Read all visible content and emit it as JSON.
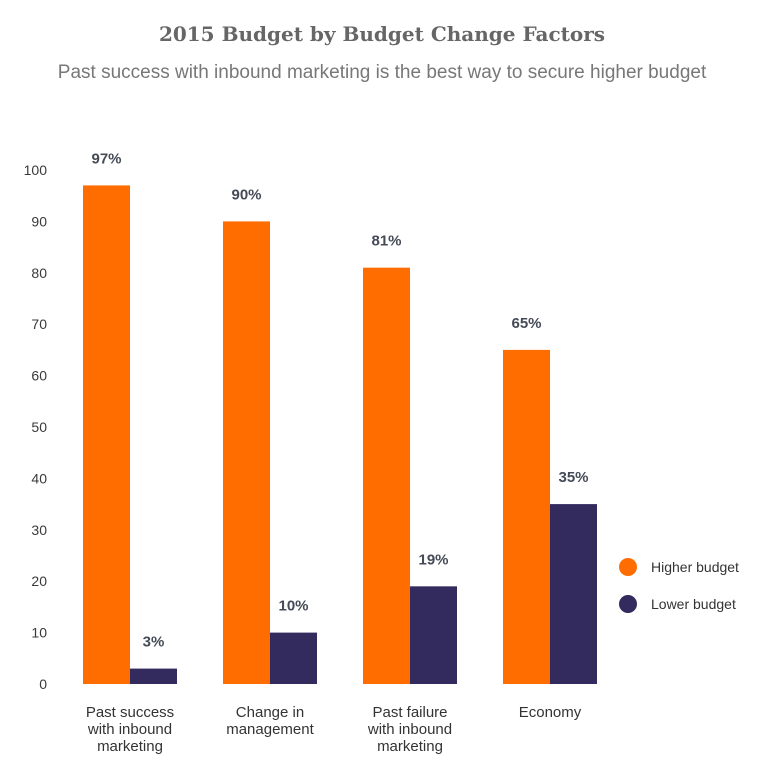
{
  "chart_data": {
    "type": "bar",
    "title": "2015 Budget by Budget Change Factors",
    "subtitle": "Past success with inbound marketing is the best way to secure higher budget",
    "categories": [
      [
        "Past success",
        "with inbound",
        "marketing"
      ],
      [
        "Change in",
        "management"
      ],
      [
        "Past failure",
        "with inbound",
        "marketing"
      ],
      [
        "Economy"
      ]
    ],
    "series": [
      {
        "name": "Higher budget",
        "color": "#ff6d00",
        "values": [
          97,
          90,
          81,
          65
        ],
        "labels": [
          "97%",
          "90%",
          "81%",
          "65%"
        ]
      },
      {
        "name": "Lower budget",
        "color": "#332a5e",
        "values": [
          3,
          10,
          19,
          35
        ],
        "labels": [
          "3%",
          "10%",
          "19%",
          "35%"
        ]
      }
    ],
    "ylim": [
      0,
      100
    ],
    "yticks": [
      0,
      10,
      20,
      30,
      40,
      50,
      60,
      70,
      80,
      90,
      100
    ],
    "xlabel": "",
    "ylabel": "",
    "legend_position": "right",
    "grid": false
  }
}
